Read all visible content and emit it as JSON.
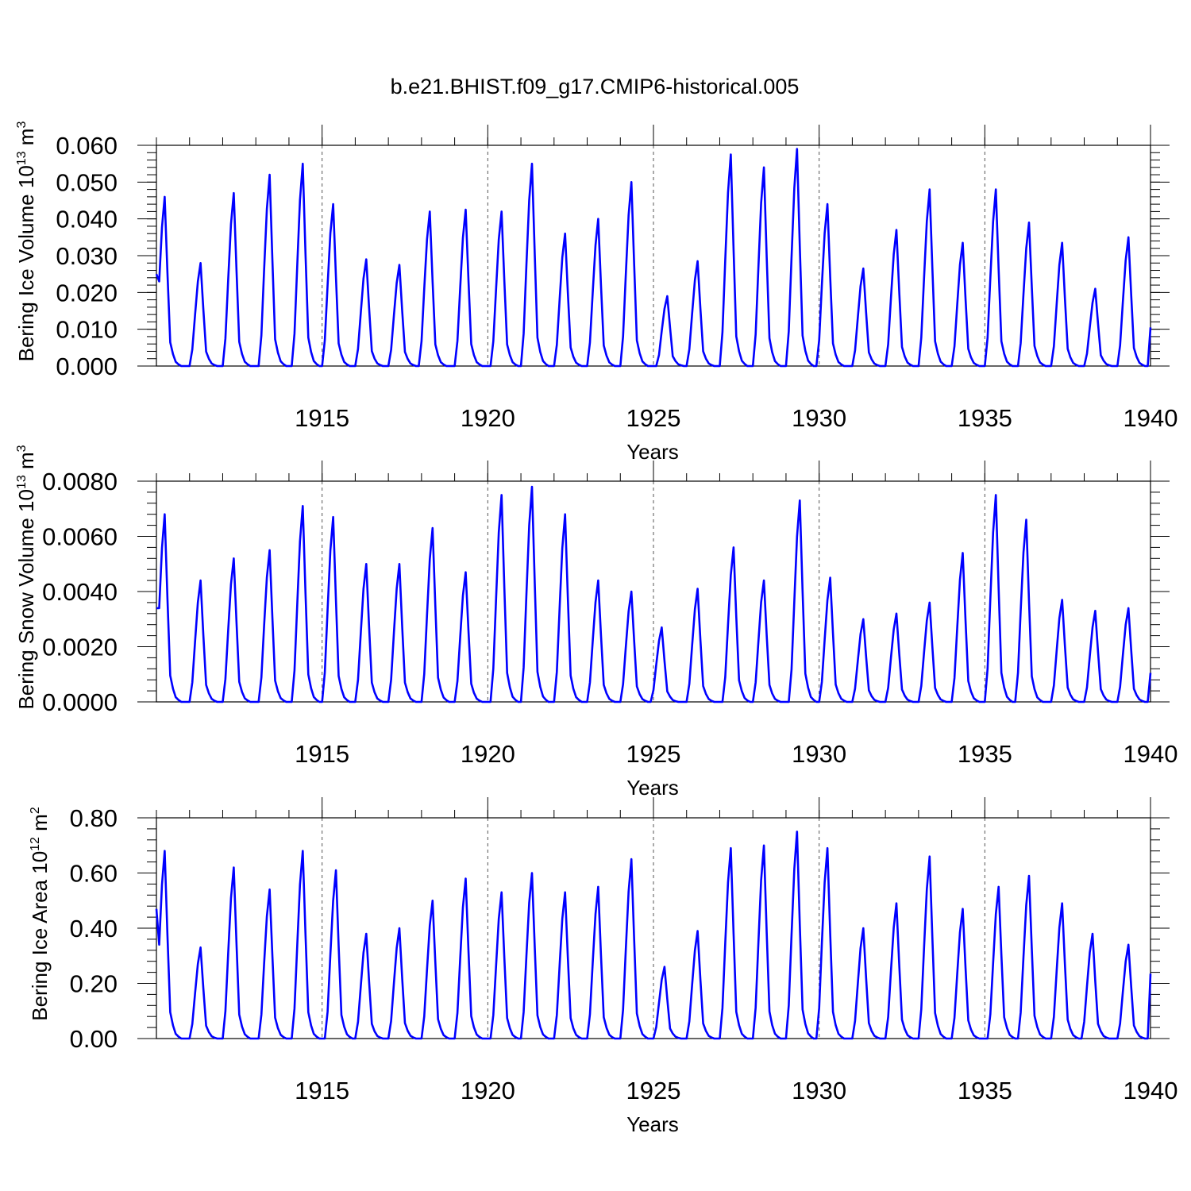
{
  "page": {
    "title": "b.e21.BHIST.f09_g17.CMIP6-historical.005"
  },
  "chart_data": [
    {
      "type": "line",
      "title": "b.e21.BHIST.f09_g17.CMIP6-historical.005",
      "xlabel": "Years",
      "ylabel": "Bering Ice Volume 10",
      "ylabel_exp": "13",
      "ylabel_unit": " m",
      "ylabel_unit_exp": "3",
      "series_color": "#0000ff",
      "xlim": [
        1910,
        1940
      ],
      "ylim": [
        0,
        0.06
      ],
      "yticks": [
        0,
        0.01,
        0.02,
        0.03,
        0.04,
        0.05,
        0.06
      ],
      "ytick_labels": [
        "0.000",
        "0.010",
        "0.020",
        "0.030",
        "0.040",
        "0.050",
        "0.060"
      ],
      "xticks": [
        1915,
        1920,
        1925,
        1930,
        1935,
        1940
      ],
      "xtick_labels": [
        "1915",
        "1920",
        "1925",
        "1930",
        "1935",
        "1940"
      ],
      "vlines": [
        1915,
        1920,
        1925,
        1930,
        1935
      ],
      "peaks": [
        0.046,
        0.028,
        0.047,
        0.052,
        0.055,
        0.044,
        0.029,
        0.0275,
        0.042,
        0.0425,
        0.042,
        0.055,
        0.036,
        0.04,
        0.05,
        0.019,
        0.0285,
        0.0575,
        0.054,
        0.059,
        0.044,
        0.0265,
        0.037,
        0.048,
        0.0335,
        0.048,
        0.039,
        0.0335,
        0.021,
        0.035
      ],
      "peak_month": [
        2,
        3,
        3,
        4,
        4,
        3,
        3,
        3,
        2,
        3,
        4,
        3,
        3,
        3,
        3,
        4,
        3,
        3,
        3,
        3,
        2,
        3,
        3,
        3,
        3,
        3,
        3,
        3,
        3,
        3
      ],
      "start": 0.025,
      "end": 0.0105
    },
    {
      "type": "line",
      "xlabel": "Years",
      "ylabel": "Bering Snow Volume 10",
      "ylabel_exp": "13",
      "ylabel_unit": " m",
      "ylabel_unit_exp": "3",
      "series_color": "#0000ff",
      "xlim": [
        1910,
        1940
      ],
      "ylim": [
        0,
        0.008
      ],
      "yticks": [
        0,
        0.002,
        0.004,
        0.006,
        0.008
      ],
      "ytick_labels": [
        "0.0000",
        "0.0020",
        "0.0040",
        "0.0060",
        "0.0080"
      ],
      "xticks": [
        1915,
        1920,
        1925,
        1930,
        1935,
        1940
      ],
      "xtick_labels": [
        "1915",
        "1920",
        "1925",
        "1930",
        "1935",
        "1940"
      ],
      "vlines": [
        1915,
        1920,
        1925,
        1930,
        1935
      ],
      "peaks": [
        0.0068,
        0.0044,
        0.0052,
        0.0055,
        0.0071,
        0.0067,
        0.005,
        0.005,
        0.0063,
        0.0047,
        0.0075,
        0.0078,
        0.0068,
        0.0044,
        0.004,
        0.0027,
        0.0041,
        0.0056,
        0.0044,
        0.0073,
        0.0045,
        0.003,
        0.0032,
        0.0036,
        0.0054,
        0.0075,
        0.0066,
        0.0037,
        0.0033,
        0.0034
      ],
      "peak_month": [
        2,
        3,
        3,
        4,
        4,
        3,
        3,
        3,
        3,
        3,
        4,
        3,
        3,
        3,
        3,
        2,
        3,
        4,
        3,
        4,
        3,
        3,
        3,
        3,
        3,
        3,
        2,
        3,
        3,
        3
      ],
      "start": 0.0034,
      "end": 0.00105
    },
    {
      "type": "line",
      "xlabel": "Years",
      "ylabel": "Bering Ice Area 10",
      "ylabel_exp": "12",
      "ylabel_unit": " m",
      "ylabel_unit_exp": "2",
      "series_color": "#0000ff",
      "xlim": [
        1910,
        1940
      ],
      "ylim": [
        0,
        0.8
      ],
      "yticks": [
        0,
        0.2,
        0.4,
        0.6,
        0.8
      ],
      "ytick_labels": [
        "0.00",
        "0.20",
        "0.40",
        "0.60",
        "0.80"
      ],
      "xticks": [
        1915,
        1920,
        1925,
        1930,
        1935,
        1940
      ],
      "xtick_labels": [
        "1915",
        "1920",
        "1925",
        "1930",
        "1935",
        "1940"
      ],
      "vlines": [
        1915,
        1920,
        1925,
        1930,
        1935
      ],
      "peaks": [
        0.68,
        0.33,
        0.62,
        0.54,
        0.68,
        0.61,
        0.38,
        0.4,
        0.5,
        0.58,
        0.53,
        0.6,
        0.53,
        0.55,
        0.65,
        0.26,
        0.39,
        0.69,
        0.7,
        0.75,
        0.69,
        0.4,
        0.49,
        0.66,
        0.47,
        0.55,
        0.59,
        0.49,
        0.38,
        0.34
      ],
      "peak_month": [
        2,
        3,
        3,
        4,
        4,
        4,
        3,
        3,
        3,
        3,
        4,
        3,
        3,
        3,
        3,
        3,
        3,
        3,
        3,
        3,
        2,
        3,
        3,
        3,
        3,
        4,
        3,
        3,
        2,
        3
      ],
      "start": 0.47,
      "end": 0.235
    }
  ]
}
